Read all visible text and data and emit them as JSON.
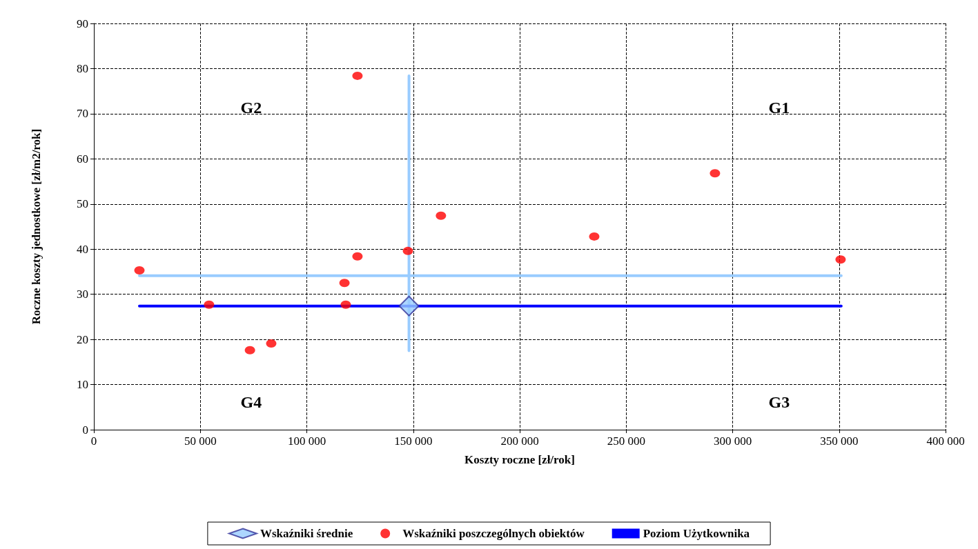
{
  "chart_data": {
    "type": "scatter",
    "xlabel": "Koszty roczne [zł/rok]",
    "ylabel": "Roczne koszty jednostkowe [zł/m2/rok]",
    "xlim": [
      0,
      400000
    ],
    "ylim": [
      0,
      90
    ],
    "xticks": [
      0,
      {
        "value": 50000,
        "label": "50 000"
      },
      {
        "value": 100000,
        "label": "100 000"
      },
      {
        "value": 150000,
        "label": "150 000"
      },
      {
        "value": 200000,
        "label": "200 000"
      },
      {
        "value": 250000,
        "label": "250 000"
      },
      {
        "value": 300000,
        "label": "300 000"
      },
      {
        "value": 350000,
        "label": "350 000"
      },
      {
        "value": 400000,
        "label": "400 000"
      }
    ],
    "yticks": [
      0,
      10,
      20,
      30,
      40,
      50,
      60,
      70,
      80,
      90
    ],
    "grid": true,
    "legend": "bottom",
    "line_style": "solid",
    "annotations": [
      "G1",
      "G2",
      "G3",
      "G4"
    ],
    "series": [
      {
        "type": "line",
        "color": "#99ccff",
        "marker": "none",
        "x": [
          21400,
          351000
        ],
        "values": [
          34.1,
          34.1
        ]
      },
      {
        "type": "line",
        "color": "#99ccff",
        "marker": "none",
        "x": [
          148000,
          148000
        ],
        "values": [
          17.5,
          78.4
        ]
      },
      {
        "name": "Wskaźniki średnie",
        "color": "#99ccff",
        "marker": "diamond",
        "x": [
          148000
        ],
        "values": [
          27.4
        ]
      },
      {
        "name": "Wskaźniki poszczególnych obiektów",
        "color": "#ff0000",
        "marker": "circle",
        "x": [
          21400,
          54100,
          73300,
          83300,
          117700,
          118300,
          123800,
          123800,
          147500,
          163000,
          235000,
          291700,
          350700
        ],
        "values": [
          35.3,
          27.7,
          17.6,
          19.1,
          32.5,
          27.7,
          38.4,
          78.4,
          39.6,
          47.4,
          42.8,
          56.8,
          37.7
        ]
      },
      {
        "type": "line",
        "name": "Poziom Użytkownika",
        "color": "#0000ff",
        "marker": "none",
        "x": [
          21400,
          351000
        ],
        "values": [
          27.4,
          27.4
        ]
      }
    ]
  }
}
